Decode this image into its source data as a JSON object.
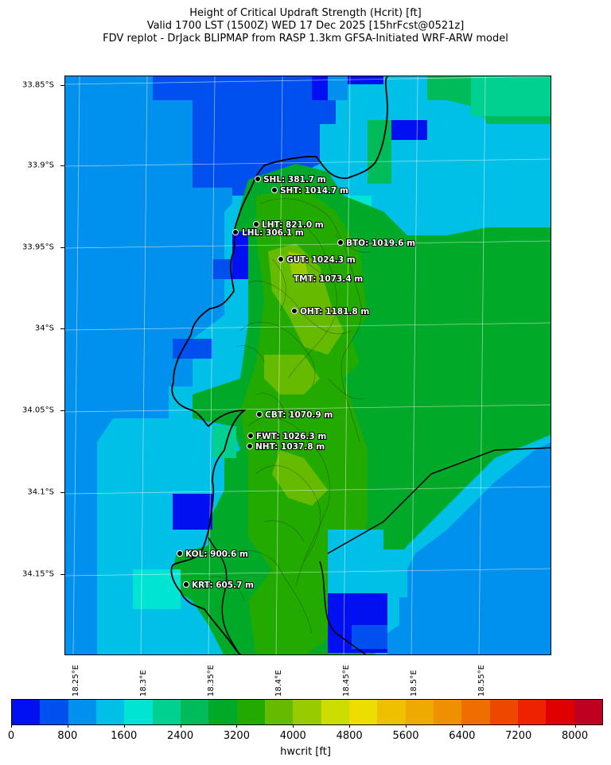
{
  "title_lines": [
    "Height of Critical Updraft Strength (Hcrit) [ft]",
    "Valid 1700 LST (1500Z) WED 17 Dec 2025 [15hrFcst@0521z]",
    "FDV replot - DrJack BLIPMAP from RASP 1.3km GFSA-Initiated WRF-ARW model"
  ],
  "lat_ticks": [
    "33.85°S",
    "33.9°S",
    "33.95°S",
    "34°S",
    "34.05°S",
    "34.1°S",
    "34.15°S"
  ],
  "lon_ticks": [
    "18.25°E",
    "18.3°E",
    "18.35°E",
    "18.4°E",
    "18.45°E",
    "18.5°E",
    "18.55°E"
  ],
  "colorbar": {
    "label": "hwcrit [ft]",
    "ticks": [
      "0",
      "800",
      "1600",
      "2400",
      "3200",
      "4000",
      "4800",
      "5600",
      "6400",
      "7200",
      "8000"
    ],
    "colors": [
      "#0010f0",
      "#0050ef",
      "#0090ed",
      "#00c0e8",
      "#00e4d4",
      "#00d090",
      "#00bb5a",
      "#00aa28",
      "#22aa00",
      "#66bb00",
      "#99cc00",
      "#ccdd00",
      "#eedd00",
      "#eec000",
      "#eeaa00",
      "#ee9000",
      "#ee6e00",
      "#ee4800",
      "#ee2200",
      "#e00000",
      "#c00020"
    ]
  },
  "sites": [
    {
      "label": "SHL: 381.7 m"
    },
    {
      "label": "SHT: 1014.7 m"
    },
    {
      "label": "LHT: 821.0 m"
    },
    {
      "label": "LHL: 306.1 m"
    },
    {
      "label": "BTO: 1019.6 m"
    },
    {
      "label": "GUT: 1024.3 m"
    },
    {
      "label": "TMT: 1073.4 m"
    },
    {
      "label": "OHT: 1181.8 m"
    },
    {
      "label": "CBT: 1070.9 m"
    },
    {
      "label": "FWT: 1026.3 m"
    },
    {
      "label": "NHT: 1037.8 m"
    },
    {
      "label": "KOL: 900.6 m"
    },
    {
      "label": "KRT: 605.7 m"
    }
  ]
}
